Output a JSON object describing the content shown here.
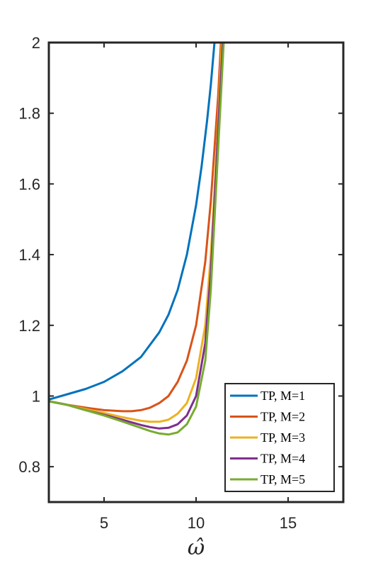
{
  "chart_data": {
    "type": "line",
    "title": "",
    "xlabel": "ω̂",
    "ylabel": "",
    "xlim": [
      2,
      18
    ],
    "ylim": [
      0.7,
      2.0
    ],
    "xticks": [
      5,
      10,
      15
    ],
    "xtick_labels": [
      "5",
      "10",
      "15"
    ],
    "yticks": [
      0.8,
      1.0,
      1.2,
      1.4,
      1.6,
      1.8,
      2.0
    ],
    "ytick_labels": [
      "0.8",
      "1",
      "1.2",
      "1.4",
      "1.6",
      "1.8",
      "2"
    ],
    "grid": false,
    "legend_position": "bottom-right",
    "series": [
      {
        "name": "TP, M=1",
        "color": "#0072BD",
        "x": [
          2.0,
          3.0,
          4.0,
          5.0,
          6.0,
          7.0,
          8.0,
          8.5,
          9.0,
          9.5,
          10.0,
          10.3,
          10.6,
          10.8,
          11.0
        ],
        "y": [
          0.99,
          1.005,
          1.02,
          1.04,
          1.07,
          1.11,
          1.18,
          1.23,
          1.3,
          1.4,
          1.54,
          1.65,
          1.78,
          1.88,
          2.0
        ]
      },
      {
        "name": "TP, M=2",
        "color": "#D95319",
        "x": [
          2.0,
          3.0,
          4.0,
          5.0,
          6.0,
          6.5,
          7.0,
          7.5,
          8.0,
          8.5,
          9.0,
          9.5,
          10.0,
          10.5,
          10.8,
          11.0,
          11.2,
          11.35
        ],
        "y": [
          0.985,
          0.975,
          0.967,
          0.96,
          0.957,
          0.957,
          0.96,
          0.967,
          0.98,
          1.0,
          1.04,
          1.1,
          1.2,
          1.38,
          1.55,
          1.7,
          1.85,
          2.0
        ]
      },
      {
        "name": "TP, M=3",
        "color": "#EDB120",
        "x": [
          2.0,
          3.0,
          4.0,
          5.0,
          6.0,
          7.0,
          7.5,
          8.0,
          8.5,
          9.0,
          9.5,
          10.0,
          10.5,
          10.8,
          11.0,
          11.2,
          11.4
        ],
        "y": [
          0.985,
          0.975,
          0.963,
          0.952,
          0.94,
          0.93,
          0.927,
          0.927,
          0.933,
          0.95,
          0.98,
          1.05,
          1.2,
          1.4,
          1.58,
          1.78,
          2.0
        ]
      },
      {
        "name": "TP, M=4",
        "color": "#7E2F8E",
        "x": [
          2.0,
          3.0,
          4.0,
          5.0,
          6.0,
          7.0,
          7.5,
          8.0,
          8.5,
          9.0,
          9.5,
          10.0,
          10.5,
          10.8,
          11.0,
          11.2,
          11.45
        ],
        "y": [
          0.985,
          0.975,
          0.96,
          0.947,
          0.933,
          0.918,
          0.912,
          0.908,
          0.91,
          0.92,
          0.945,
          1.0,
          1.15,
          1.35,
          1.55,
          1.75,
          2.0
        ]
      },
      {
        "name": "TP, M=5",
        "color": "#77AC30",
        "x": [
          2.0,
          3.0,
          4.0,
          5.0,
          6.0,
          7.0,
          7.5,
          8.0,
          8.5,
          9.0,
          9.5,
          10.0,
          10.5,
          10.8,
          11.0,
          11.3,
          11.5
        ],
        "y": [
          0.985,
          0.975,
          0.96,
          0.945,
          0.928,
          0.91,
          0.901,
          0.894,
          0.891,
          0.897,
          0.92,
          0.97,
          1.1,
          1.3,
          1.5,
          1.8,
          2.0
        ]
      }
    ]
  }
}
